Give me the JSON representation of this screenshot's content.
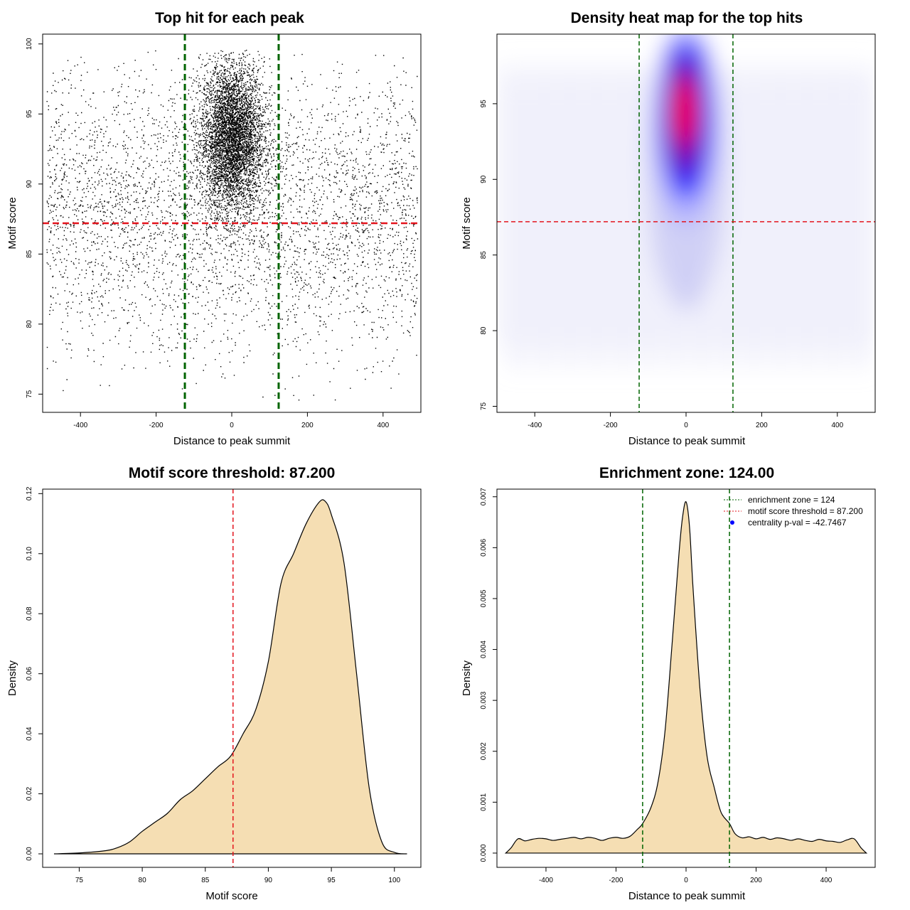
{
  "colors": {
    "zone": "#006400",
    "threshold": "#e3141d",
    "fill": "#f5deb3",
    "heat_low": "#ffffff",
    "heat_mid": "#0000ff",
    "heat_high": "#ff0000",
    "point": "#000000",
    "pval_marker": "#0000ff"
  },
  "chart_data": [
    {
      "type": "scatter",
      "title": "Top hit for each peak",
      "xlabel": "Distance to peak summit",
      "ylabel": "Motif score",
      "xlim": [
        -500,
        500
      ],
      "ylim": [
        73.7,
        100.7
      ],
      "xticks": [
        "-400",
        "-200",
        "0",
        "200",
        "400"
      ],
      "yticks": [
        "75",
        "80",
        "85",
        "90",
        "95",
        "100"
      ],
      "n_points": 9000,
      "vlines": [
        -124,
        124
      ],
      "hline": 87.2,
      "grid": false
    },
    {
      "type": "heatmap",
      "title": "Density heat map for the top hits",
      "xlabel": "Distance to peak summit",
      "ylabel": "Motif score",
      "xlim": [
        -500,
        500
      ],
      "ylim": [
        74.6,
        99.6
      ],
      "xticks": [
        "-400",
        "-200",
        "0",
        "200",
        "400"
      ],
      "yticks": [
        "75",
        "80",
        "85",
        "90",
        "95"
      ],
      "peak": {
        "x": 0,
        "y": 94.5
      },
      "vlines": [
        -124,
        124
      ],
      "hline": 87.2,
      "grid": false
    },
    {
      "type": "area",
      "title": "Motif score threshold: 87.200",
      "xlabel": "Motif score",
      "ylabel": "Density",
      "xlim": [
        72.1,
        102.1
      ],
      "ylim": [
        -0.0045,
        0.1215
      ],
      "xticks": [
        "75",
        "80",
        "85",
        "90",
        "95",
        "100"
      ],
      "yticks": [
        "0.00",
        "0.02",
        "0.04",
        "0.06",
        "0.08",
        "0.10",
        "0.12"
      ],
      "vline": 87.2,
      "x": [
        73,
        75,
        77,
        78,
        79,
        80,
        81,
        82,
        83,
        84,
        85,
        86,
        87,
        88,
        89,
        90,
        91,
        92,
        93,
        94,
        94.5,
        95,
        96,
        97,
        98,
        99,
        100,
        101
      ],
      "y": [
        0,
        0.0003,
        0.001,
        0.002,
        0.004,
        0.0075,
        0.0105,
        0.0135,
        0.018,
        0.021,
        0.025,
        0.029,
        0.0325,
        0.04,
        0.048,
        0.064,
        0.09,
        0.1,
        0.11,
        0.117,
        0.1175,
        0.113,
        0.097,
        0.06,
        0.022,
        0.004,
        0.0005,
        0
      ]
    },
    {
      "type": "area",
      "title": "Enrichment zone: 124.00",
      "xlabel": "Distance to peak summit",
      "ylabel": "Density",
      "xlim": [
        -540,
        540
      ],
      "ylim": [
        -0.00028,
        0.00715
      ],
      "xticks": [
        "-400",
        "-200",
        "0",
        "200",
        "400"
      ],
      "yticks": [
        "0.000",
        "0.001",
        "0.002",
        "0.003",
        "0.004",
        "0.005",
        "0.006",
        "0.007"
      ],
      "vlines": [
        -124,
        124
      ],
      "x": [
        -515,
        -500,
        -480,
        -460,
        -440,
        -420,
        -400,
        -380,
        -360,
        -340,
        -320,
        -300,
        -280,
        -260,
        -240,
        -220,
        -200,
        -180,
        -160,
        -140,
        -124,
        -100,
        -80,
        -60,
        -40,
        -20,
        -10,
        0,
        10,
        20,
        40,
        60,
        80,
        100,
        124,
        140,
        160,
        180,
        200,
        220,
        240,
        260,
        280,
        300,
        320,
        340,
        360,
        380,
        400,
        420,
        440,
        460,
        480,
        500,
        515
      ],
      "y": [
        0,
        0.0001,
        0.00028,
        0.00024,
        0.00027,
        0.00029,
        0.00028,
        0.00025,
        0.00027,
        0.00029,
        0.00031,
        0.00028,
        0.00031,
        0.00029,
        0.00025,
        0.00029,
        0.00031,
        0.00029,
        0.00033,
        0.00046,
        0.00058,
        0.0009,
        0.0014,
        0.0024,
        0.0041,
        0.0059,
        0.0066,
        0.0069,
        0.0064,
        0.0052,
        0.0032,
        0.0019,
        0.0013,
        0.0008,
        0.00058,
        0.00038,
        0.0003,
        0.00032,
        0.00028,
        0.00031,
        0.00027,
        0.0003,
        0.00028,
        0.00025,
        0.00028,
        0.00025,
        0.00023,
        0.00027,
        0.00024,
        0.00023,
        0.00021,
        0.00026,
        0.00028,
        0.0001,
        0
      ],
      "legend": [
        {
          "label": "enrichment zone = 124",
          "style": "dotted-line"
        },
        {
          "label": "motif score threshold = 87.200",
          "style": "dotted-line"
        },
        {
          "label": "centrality p-val = -42.7467",
          "style": "dot"
        }
      ],
      "legend_position": "top-right"
    }
  ]
}
